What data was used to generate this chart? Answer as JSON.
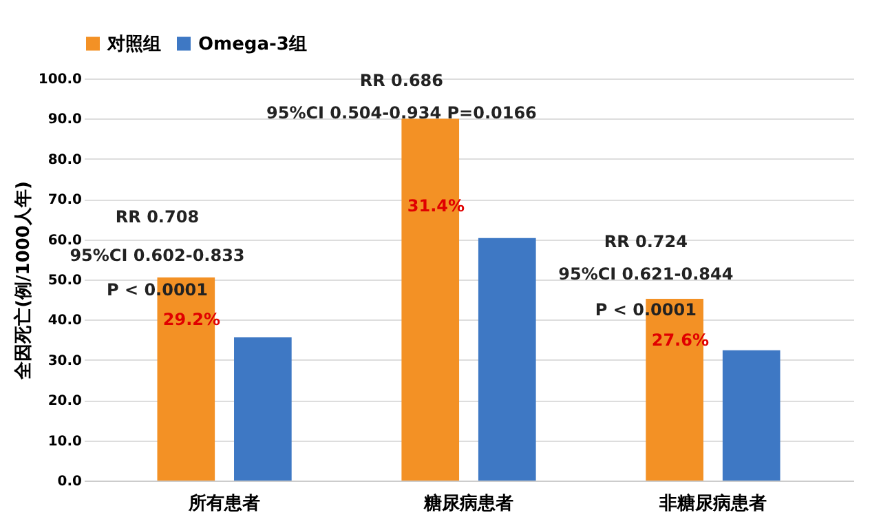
{
  "chart_data": {
    "type": "bar",
    "categories": [
      "所有患者",
      "糖尿病患者",
      "非糖尿病患者"
    ],
    "series": [
      {
        "name": "对照组",
        "color": "#f39125",
        "values": [
          50.5,
          90,
          45.2
        ]
      },
      {
        "name": "Omega-3组",
        "color": "#3e78c4",
        "values": [
          35.6,
          60.3,
          32.4
        ]
      }
    ],
    "ylabel": "全因死亡(例/1000人年)",
    "ylim": [
      0,
      100
    ],
    "yticks": [
      {
        "value": 0,
        "label": "0.0"
      },
      {
        "value": 10,
        "label": "10.0"
      },
      {
        "value": 20,
        "label": "20.0"
      },
      {
        "value": 30,
        "label": "30.0"
      },
      {
        "value": 40,
        "label": "40.0"
      },
      {
        "value": 50,
        "label": "50.0"
      },
      {
        "value": 60,
        "label": "60.0"
      },
      {
        "value": 70,
        "label": "70.0"
      },
      {
        "value": 80,
        "label": "80.0"
      },
      {
        "value": 90,
        "label": "90.0"
      },
      {
        "value": 100,
        "label": "100.0"
      }
    ],
    "grid": "y",
    "legend": "top",
    "annotations": [
      "RR 0.708",
      "95%CI 0.602-0.833",
      "P < 0.0001",
      "29.2%",
      "RR 0.686",
      "95%CI 0.504-0.934  P=0.0166",
      "31.4%",
      "RR 0.724",
      "95%CI 0.621-0.844",
      "P < 0.0001",
      "27.6%"
    ]
  }
}
